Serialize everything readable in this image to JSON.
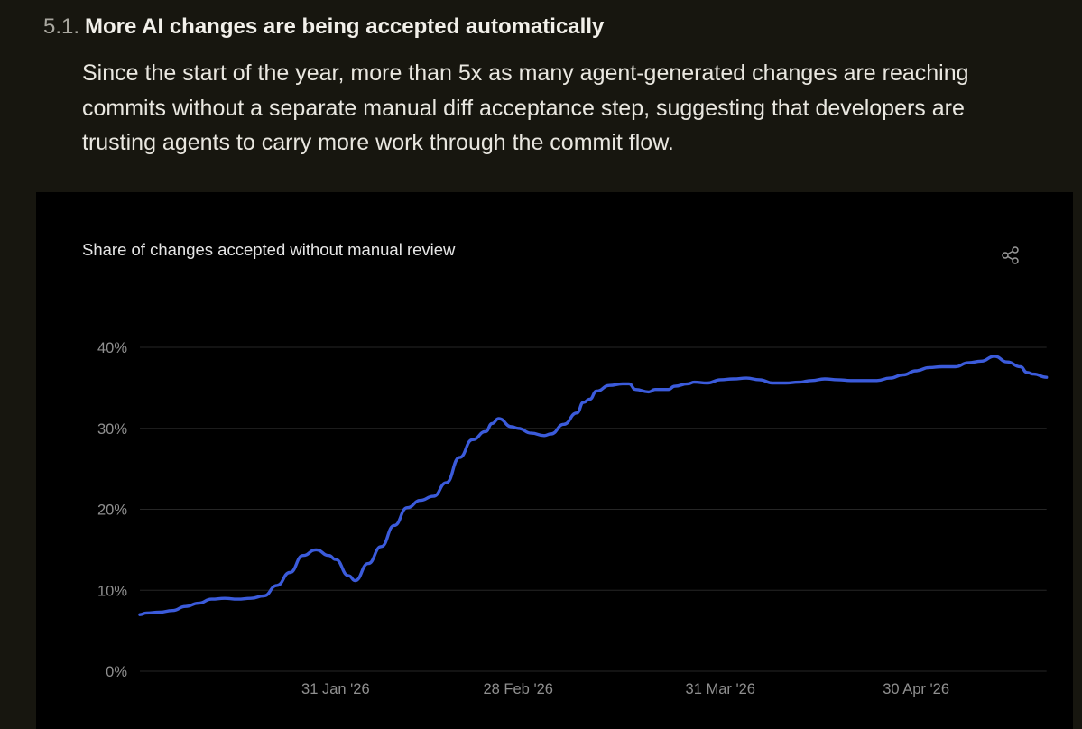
{
  "section": {
    "number": "5.1.",
    "title": "More AI changes are being accepted automatically",
    "paragraph": "Since the start of the year, more than 5x as many agent-generated changes are reaching commits without a separate manual diff acceptance step, suggesting that developers are trusting agents to carry more work through the commit flow."
  },
  "share_icon": "share-icon",
  "colors": {
    "background": "#17160f",
    "card": "#000000",
    "line": "#3b5bdb",
    "grid": "#262626",
    "axis_text": "#8f8f8f"
  },
  "chart_data": {
    "type": "line",
    "title": "Share of changes accepted without manual review",
    "xlabel": "",
    "ylabel": "",
    "ylim": [
      0,
      40
    ],
    "y_ticks": [
      "0%",
      "10%",
      "20%",
      "30%",
      "40%"
    ],
    "y_tick_values": [
      0,
      10,
      20,
      30,
      40
    ],
    "x_tick_labels": [
      "31 Jan '26",
      "28 Feb '26",
      "31 Mar '26",
      "30 Apr '26"
    ],
    "x_tick_dates": [
      "2026-01-31",
      "2026-02-28",
      "2026-03-31",
      "2026-04-30"
    ],
    "xlim": [
      "2026-01-01",
      "2026-05-17"
    ],
    "grid": true,
    "series": [
      {
        "color": "#3b5bdb",
        "points": [
          [
            "2026-01-01",
            7.0
          ],
          [
            "2026-01-02",
            7.2
          ],
          [
            "2026-01-04",
            7.3
          ],
          [
            "2026-01-06",
            7.5
          ],
          [
            "2026-01-08",
            8.0
          ],
          [
            "2026-01-10",
            8.4
          ],
          [
            "2026-01-12",
            8.9
          ],
          [
            "2026-01-14",
            9.0
          ],
          [
            "2026-01-16",
            8.9
          ],
          [
            "2026-01-18",
            9.0
          ],
          [
            "2026-01-20",
            9.3
          ],
          [
            "2026-01-22",
            10.6
          ],
          [
            "2026-01-24",
            12.2
          ],
          [
            "2026-01-26",
            14.3
          ],
          [
            "2026-01-28",
            15.0
          ],
          [
            "2026-01-30",
            14.3
          ],
          [
            "2026-01-31",
            13.8
          ],
          [
            "2026-02-02",
            11.8
          ],
          [
            "2026-02-03",
            11.2
          ],
          [
            "2026-02-05",
            13.3
          ],
          [
            "2026-02-07",
            15.4
          ],
          [
            "2026-02-09",
            18.0
          ],
          [
            "2026-02-11",
            20.2
          ],
          [
            "2026-02-13",
            21.1
          ],
          [
            "2026-02-15",
            21.6
          ],
          [
            "2026-02-17",
            23.3
          ],
          [
            "2026-02-19",
            26.4
          ],
          [
            "2026-02-21",
            28.6
          ],
          [
            "2026-02-23",
            29.6
          ],
          [
            "2026-02-24",
            30.6
          ],
          [
            "2026-02-25",
            31.2
          ],
          [
            "2026-02-27",
            30.2
          ],
          [
            "2026-02-28",
            30.0
          ],
          [
            "2026-03-02",
            29.4
          ],
          [
            "2026-03-04",
            29.1
          ],
          [
            "2026-03-05",
            29.3
          ],
          [
            "2026-03-07",
            30.5
          ],
          [
            "2026-03-09",
            31.9
          ],
          [
            "2026-03-10",
            33.2
          ],
          [
            "2026-03-11",
            33.6
          ],
          [
            "2026-03-12",
            34.6
          ],
          [
            "2026-03-14",
            35.3
          ],
          [
            "2026-03-16",
            35.5
          ],
          [
            "2026-03-17",
            35.5
          ],
          [
            "2026-03-18",
            34.8
          ],
          [
            "2026-03-20",
            34.5
          ],
          [
            "2026-03-21",
            34.8
          ],
          [
            "2026-03-23",
            34.8
          ],
          [
            "2026-03-24",
            35.2
          ],
          [
            "2026-03-26",
            35.5
          ],
          [
            "2026-03-27",
            35.7
          ],
          [
            "2026-03-29",
            35.6
          ],
          [
            "2026-03-31",
            36.0
          ],
          [
            "2026-04-02",
            36.1
          ],
          [
            "2026-04-04",
            36.2
          ],
          [
            "2026-04-06",
            36.0
          ],
          [
            "2026-04-08",
            35.6
          ],
          [
            "2026-04-10",
            35.6
          ],
          [
            "2026-04-12",
            35.7
          ],
          [
            "2026-04-14",
            35.9
          ],
          [
            "2026-04-16",
            36.1
          ],
          [
            "2026-04-18",
            36.0
          ],
          [
            "2026-04-20",
            35.9
          ],
          [
            "2026-04-22",
            35.9
          ],
          [
            "2026-04-24",
            35.9
          ],
          [
            "2026-04-26",
            36.2
          ],
          [
            "2026-04-28",
            36.6
          ],
          [
            "2026-04-30",
            37.1
          ],
          [
            "2026-05-02",
            37.5
          ],
          [
            "2026-05-04",
            37.6
          ],
          [
            "2026-05-06",
            37.6
          ],
          [
            "2026-05-08",
            38.1
          ],
          [
            "2026-05-10",
            38.3
          ],
          [
            "2026-05-12",
            38.9
          ],
          [
            "2026-05-14",
            38.2
          ],
          [
            "2026-05-16",
            37.6
          ],
          [
            "2026-05-17",
            36.9
          ],
          [
            "2026-05-18",
            36.7
          ],
          [
            "2026-05-20",
            36.3
          ]
        ]
      }
    ]
  }
}
